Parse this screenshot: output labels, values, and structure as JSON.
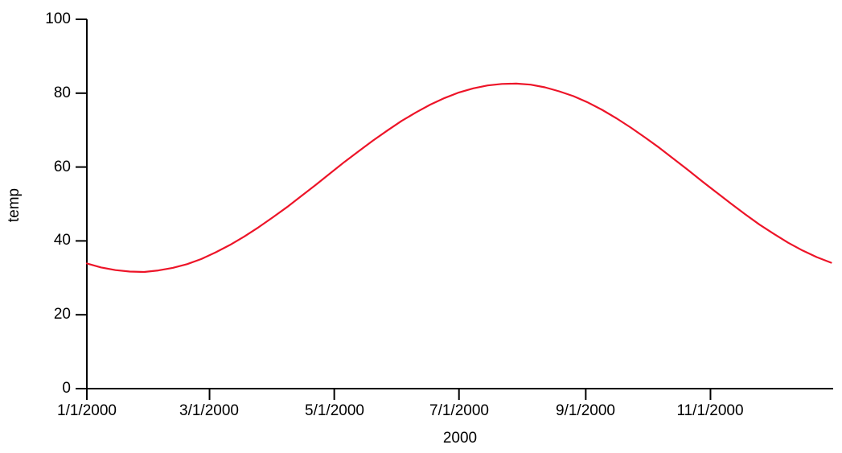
{
  "chart_data": {
    "type": "line",
    "title": "",
    "xlabel": "2000",
    "ylabel": "temp",
    "grid": false,
    "legend_position": "none",
    "background_color": "#ffffff",
    "axis_color": "#000000",
    "line_color": "#ed1428",
    "ylim": [
      0,
      100
    ],
    "y_ticks": [
      0,
      20,
      40,
      60,
      80,
      100
    ],
    "y_tick_labels": [
      "0",
      "20",
      "40",
      "60",
      "80",
      "100"
    ],
    "x_range_days": [
      0,
      365
    ],
    "x_tick_days": [
      0,
      60,
      121,
      182,
      244,
      305
    ],
    "x_tick_labels": [
      "1/1/2000",
      "3/1/2000",
      "5/1/2000",
      "7/1/2000",
      "9/1/2000",
      "11/1/2000"
    ],
    "series": [
      {
        "name": "temp",
        "x_days": [
          0,
          7,
          14,
          21,
          28,
          35,
          42,
          49,
          56,
          63,
          70,
          77,
          84,
          91,
          98,
          105,
          112,
          119,
          126,
          133,
          140,
          147,
          154,
          161,
          168,
          175,
          182,
          189,
          196,
          203,
          210,
          217,
          224,
          231,
          238,
          245,
          252,
          259,
          266,
          273,
          280,
          287,
          294,
          301,
          308,
          315,
          322,
          329,
          336,
          343,
          350,
          357,
          364
        ],
        "values": [
          33.9,
          32.8,
          32.1,
          31.7,
          31.6,
          32.0,
          32.7,
          33.7,
          35.1,
          36.9,
          38.9,
          41.2,
          43.7,
          46.4,
          49.2,
          52.2,
          55.2,
          58.3,
          61.4,
          64.3,
          67.2,
          69.9,
          72.5,
          74.8,
          76.9,
          78.7,
          80.2,
          81.3,
          82.1,
          82.5,
          82.6,
          82.3,
          81.6,
          80.5,
          79.2,
          77.5,
          75.5,
          73.2,
          70.7,
          68.0,
          65.2,
          62.2,
          59.2,
          56.1,
          53.1,
          50.1,
          47.2,
          44.4,
          41.9,
          39.5,
          37.4,
          35.6,
          34.1
        ]
      }
    ],
    "annotations": {
      "min_value": 31.6,
      "min_date": "1/25/2000",
      "max_value": 82.6,
      "max_date": "7/28/2000"
    }
  }
}
